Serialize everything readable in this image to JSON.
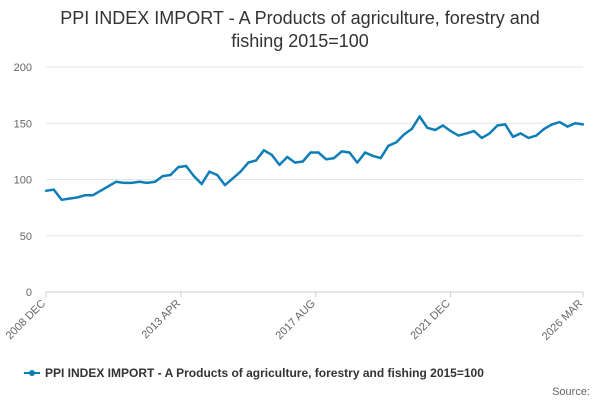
{
  "chart_data": {
    "type": "line",
    "title_lines": [
      "PPI INDEX IMPORT - A Products of agriculture, forestry and",
      "fishing 2015=100"
    ],
    "xlabel": "",
    "ylabel": "",
    "ylim": [
      0,
      200
    ],
    "y_ticks": [
      "0",
      "50",
      "100",
      "150",
      "200"
    ],
    "x_tick_labels": [
      "2008 DEC",
      "2013 APR",
      "2017 AUG",
      "2021 DEC",
      "2026 MAR"
    ],
    "x": [
      "2008-12",
      "2009-03",
      "2009-06",
      "2009-09",
      "2009-12",
      "2010-03",
      "2010-06",
      "2010-09",
      "2010-12",
      "2011-03",
      "2011-06",
      "2011-09",
      "2011-12",
      "2012-03",
      "2012-06",
      "2012-09",
      "2012-12",
      "2013-03",
      "2013-06",
      "2013-09",
      "2013-12",
      "2014-03",
      "2014-06",
      "2014-09",
      "2014-12",
      "2015-03",
      "2015-06",
      "2015-09",
      "2015-12",
      "2016-03",
      "2016-06",
      "2016-09",
      "2016-12",
      "2017-03",
      "2017-06",
      "2017-09",
      "2017-12",
      "2018-03",
      "2018-06",
      "2018-09",
      "2018-12",
      "2019-03",
      "2019-06",
      "2019-09",
      "2019-12",
      "2020-03",
      "2020-06",
      "2020-09",
      "2020-12",
      "2021-03",
      "2021-06",
      "2021-09",
      "2021-12",
      "2022-03",
      "2022-06",
      "2022-09",
      "2022-12",
      "2023-03",
      "2023-06",
      "2023-09",
      "2023-12",
      "2024-03",
      "2024-06",
      "2024-09",
      "2024-12",
      "2025-03",
      "2025-06",
      "2025-09",
      "2025-12",
      "2026-03"
    ],
    "series": [
      {
        "name": "PPI INDEX IMPORT - A Products of agriculture, forestry and fishing 2015=100",
        "color": "#0e7eb8",
        "values": [
          90,
          91,
          82,
          83,
          84,
          86,
          86,
          90,
          94,
          98,
          97,
          97,
          98,
          97,
          98,
          103,
          104,
          111,
          112,
          103,
          96,
          107,
          104,
          95,
          101,
          107,
          115,
          117,
          126,
          122,
          113,
          120,
          115,
          116,
          124,
          124,
          118,
          119,
          125,
          124,
          115,
          124,
          121,
          119,
          130,
          133,
          140,
          145,
          156,
          146,
          144,
          148,
          143,
          139,
          141,
          143,
          137,
          141,
          148,
          149,
          138,
          141,
          137,
          139,
          145,
          149,
          151,
          147,
          150,
          149
        ]
      }
    ]
  },
  "legend": {
    "label": "PPI INDEX IMPORT - A Products of agriculture, forestry and fishing 2015=100"
  },
  "source": {
    "label": "Source:"
  }
}
